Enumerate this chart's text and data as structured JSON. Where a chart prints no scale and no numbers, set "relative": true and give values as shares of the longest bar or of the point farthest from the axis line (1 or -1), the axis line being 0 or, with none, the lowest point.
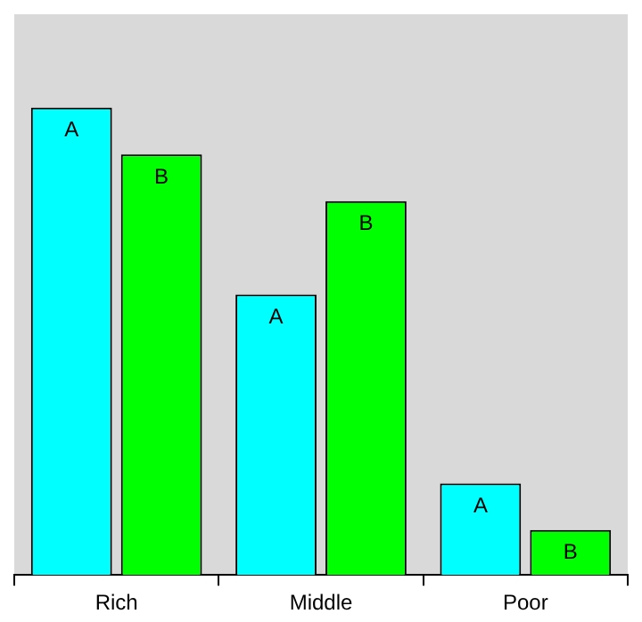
{
  "chart_data": {
    "type": "bar",
    "relative": true,
    "categories": [
      "Rich",
      "Middle",
      "Poor"
    ],
    "series": [
      {
        "name": "A",
        "color": "#00ffff",
        "values": [
          1,
          0.6,
          0.196
        ]
      },
      {
        "name": "B",
        "color": "#00ff00",
        "values": [
          0.9,
          0.8,
          0.096
        ]
      }
    ],
    "legend": false,
    "grid": false
  }
}
